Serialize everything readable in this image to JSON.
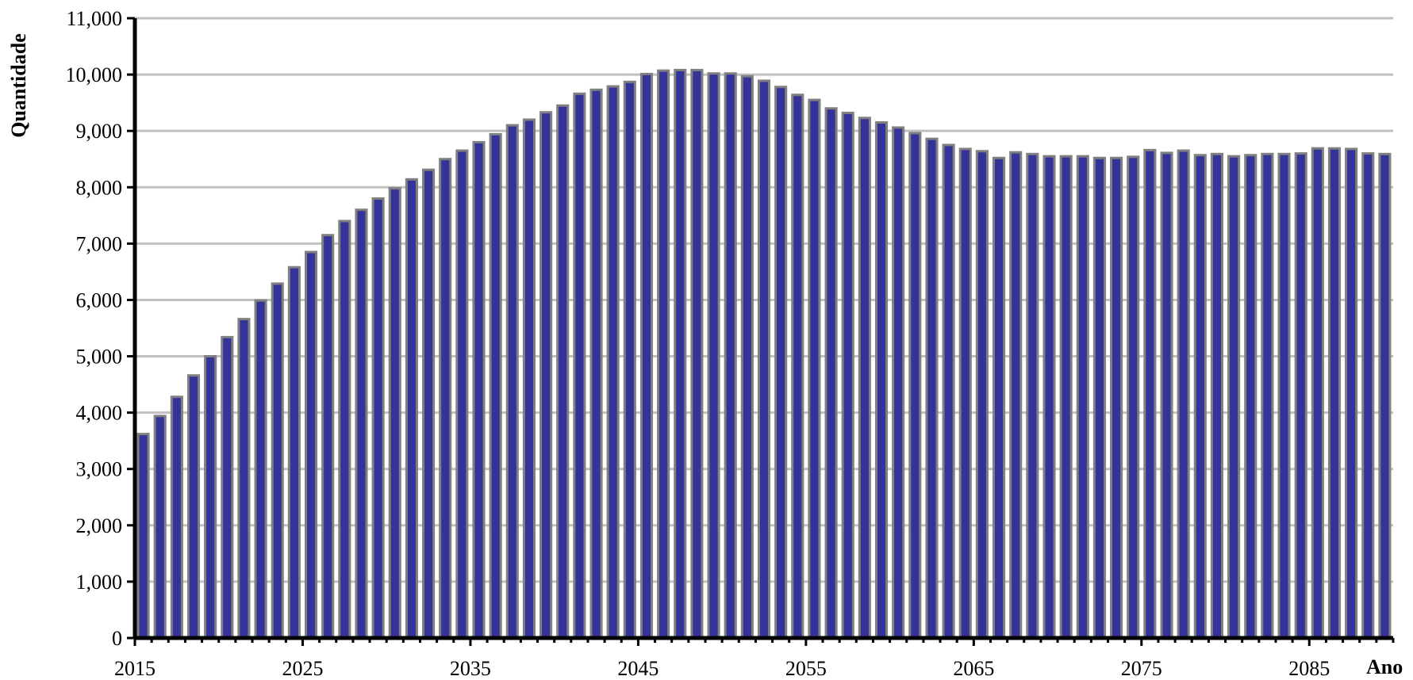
{
  "chart_data": {
    "type": "bar",
    "title": "",
    "xlabel": "Ano",
    "ylabel": "Quantidade",
    "ylim": [
      0,
      11000
    ],
    "yticks": [
      0,
      1000,
      2000,
      3000,
      4000,
      5000,
      6000,
      7000,
      8000,
      9000,
      10000,
      11000
    ],
    "ytick_labels": [
      "0",
      "1,000",
      "2,000",
      "3,000",
      "4,000",
      "5,000",
      "6,000",
      "7,000",
      "8,000",
      "9,000",
      "10,000",
      "11,000"
    ],
    "xtick_labels": [
      "2015",
      "2025",
      "2035",
      "2045",
      "2055",
      "2065",
      "2075",
      "2085"
    ],
    "grid": true,
    "bar_fill": "#333399",
    "bar_edge": "#808080",
    "categories": [
      2015,
      2016,
      2017,
      2018,
      2019,
      2020,
      2021,
      2022,
      2023,
      2024,
      2025,
      2026,
      2027,
      2028,
      2029,
      2030,
      2031,
      2032,
      2033,
      2034,
      2035,
      2036,
      2037,
      2038,
      2039,
      2040,
      2041,
      2042,
      2043,
      2044,
      2045,
      2046,
      2047,
      2048,
      2049,
      2050,
      2051,
      2052,
      2053,
      2054,
      2055,
      2056,
      2057,
      2058,
      2059,
      2060,
      2061,
      2062,
      2063,
      2064,
      2065,
      2066,
      2067,
      2068,
      2069,
      2070,
      2071,
      2072,
      2073,
      2074,
      2075,
      2076,
      2077,
      2078,
      2079,
      2080,
      2081,
      2082,
      2083,
      2084,
      2085,
      2086,
      2087,
      2088,
      2089
    ],
    "values": [
      3620,
      3940,
      4280,
      4660,
      5000,
      5340,
      5660,
      5990,
      6290,
      6580,
      6850,
      7150,
      7400,
      7600,
      7800,
      7980,
      8140,
      8310,
      8500,
      8650,
      8800,
      8940,
      9100,
      9200,
      9330,
      9450,
      9660,
      9730,
      9790,
      9870,
      10010,
      10070,
      10080,
      10080,
      10020,
      10020,
      9970,
      9890,
      9780,
      9640,
      9550,
      9400,
      9320,
      9230,
      9150,
      9060,
      8960,
      8860,
      8750,
      8680,
      8640,
      8520,
      8620,
      8590,
      8550,
      8550,
      8550,
      8520,
      8520,
      8540,
      8660,
      8610,
      8650,
      8570,
      8590,
      8550,
      8570,
      8590,
      8590,
      8600,
      8690,
      8690,
      8680,
      8600,
      8590
    ]
  }
}
